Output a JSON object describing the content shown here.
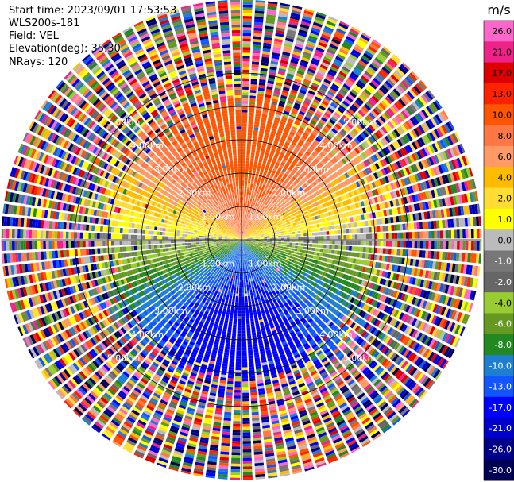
{
  "info": {
    "start_time": "Start time: 2023/09/01 17:53:53",
    "instrument": "WLS200s-181",
    "field": "Field: VEL",
    "elevation": "Elevation(deg): 35.30",
    "nrays": "NRays: 120"
  },
  "chart_data": {
    "type": "ppi-radar",
    "field": "VEL",
    "instrument": "WLS200s-181",
    "n_rays": 120,
    "elevation_deg": 35.3,
    "range_rings_km": [
      1,
      2,
      3,
      4,
      5
    ],
    "ring_labels": [
      "1.00km",
      "2.00km",
      "3.00km",
      "4.00km",
      "5.00km"
    ],
    "max_range_km": 7.2,
    "colorbar": {
      "unit": "m/s",
      "ticks": [
        "26.0",
        "21.0",
        "17.0",
        "13.0",
        "10.0",
        "8.0",
        "6.0",
        "4.0",
        "2.0",
        "1.0",
        "0.0",
        "-1.0",
        "-2.0",
        "-4.0",
        "-6.0",
        "-8.0",
        "-10.0",
        "-13.0",
        "-17.0",
        "-21.0",
        "-26.0",
        "-30.0"
      ],
      "colors": [
        "#ff66cc",
        "#ee2288",
        "#dd0000",
        "#ff2200",
        "#ff5500",
        "#ff7744",
        "#ff9966",
        "#ffbb00",
        "#ffdd33",
        "#ffff00",
        "#bbbbbb",
        "#777777",
        "#666666",
        "#99cc33",
        "#669922",
        "#228822",
        "#1e7fd0",
        "#1155ff",
        "#0000ff",
        "#0000cc",
        "#000088",
        "#000055"
      ]
    }
  }
}
